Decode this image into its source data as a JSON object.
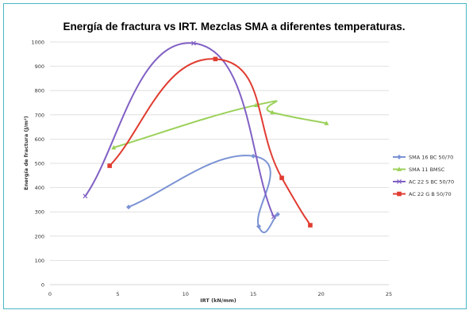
{
  "chart_data": {
    "type": "scatter",
    "title": "Energía de fractura vs IRT. Mezclas SMA a diferentes temperaturas.",
    "xlabel": "IRT (kN/mm)",
    "ylabel": "Energía de fractura (J/m²)",
    "xlim": [
      0,
      25
    ],
    "ylim": [
      0,
      1000
    ],
    "xticks": [
      0,
      5,
      10,
      15,
      20,
      25
    ],
    "yticks": [
      0,
      100,
      200,
      300,
      400,
      500,
      600,
      700,
      800,
      900,
      1000
    ],
    "grid": true,
    "legend_position": "right",
    "series": [
      {
        "name": "SMA 16 BC 50/70",
        "color": "#7b93d4",
        "marker": "diamond",
        "points": [
          [
            5.8,
            320
          ],
          [
            15,
            530
          ],
          [
            15.4,
            240
          ],
          [
            16.8,
            290
          ]
        ]
      },
      {
        "name": "SMA 11 BMSC",
        "color": "#9bd15a",
        "marker": "triangle",
        "points": [
          [
            4.7,
            565
          ],
          [
            15.2,
            740
          ],
          [
            16.4,
            710
          ],
          [
            20.4,
            665
          ]
        ]
      },
      {
        "name": "AC 22 S BC 50/70",
        "color": "#8160c4",
        "marker": "x",
        "points": [
          [
            2.6,
            365
          ],
          [
            10.6,
            995
          ],
          [
            16.5,
            280
          ]
        ]
      },
      {
        "name": "AC 22 G B 50/70",
        "color": "#e03c31",
        "marker": "square",
        "points": [
          [
            4.4,
            490
          ],
          [
            12.2,
            930
          ],
          [
            17.1,
            440
          ],
          [
            19.2,
            245
          ]
        ]
      }
    ]
  }
}
